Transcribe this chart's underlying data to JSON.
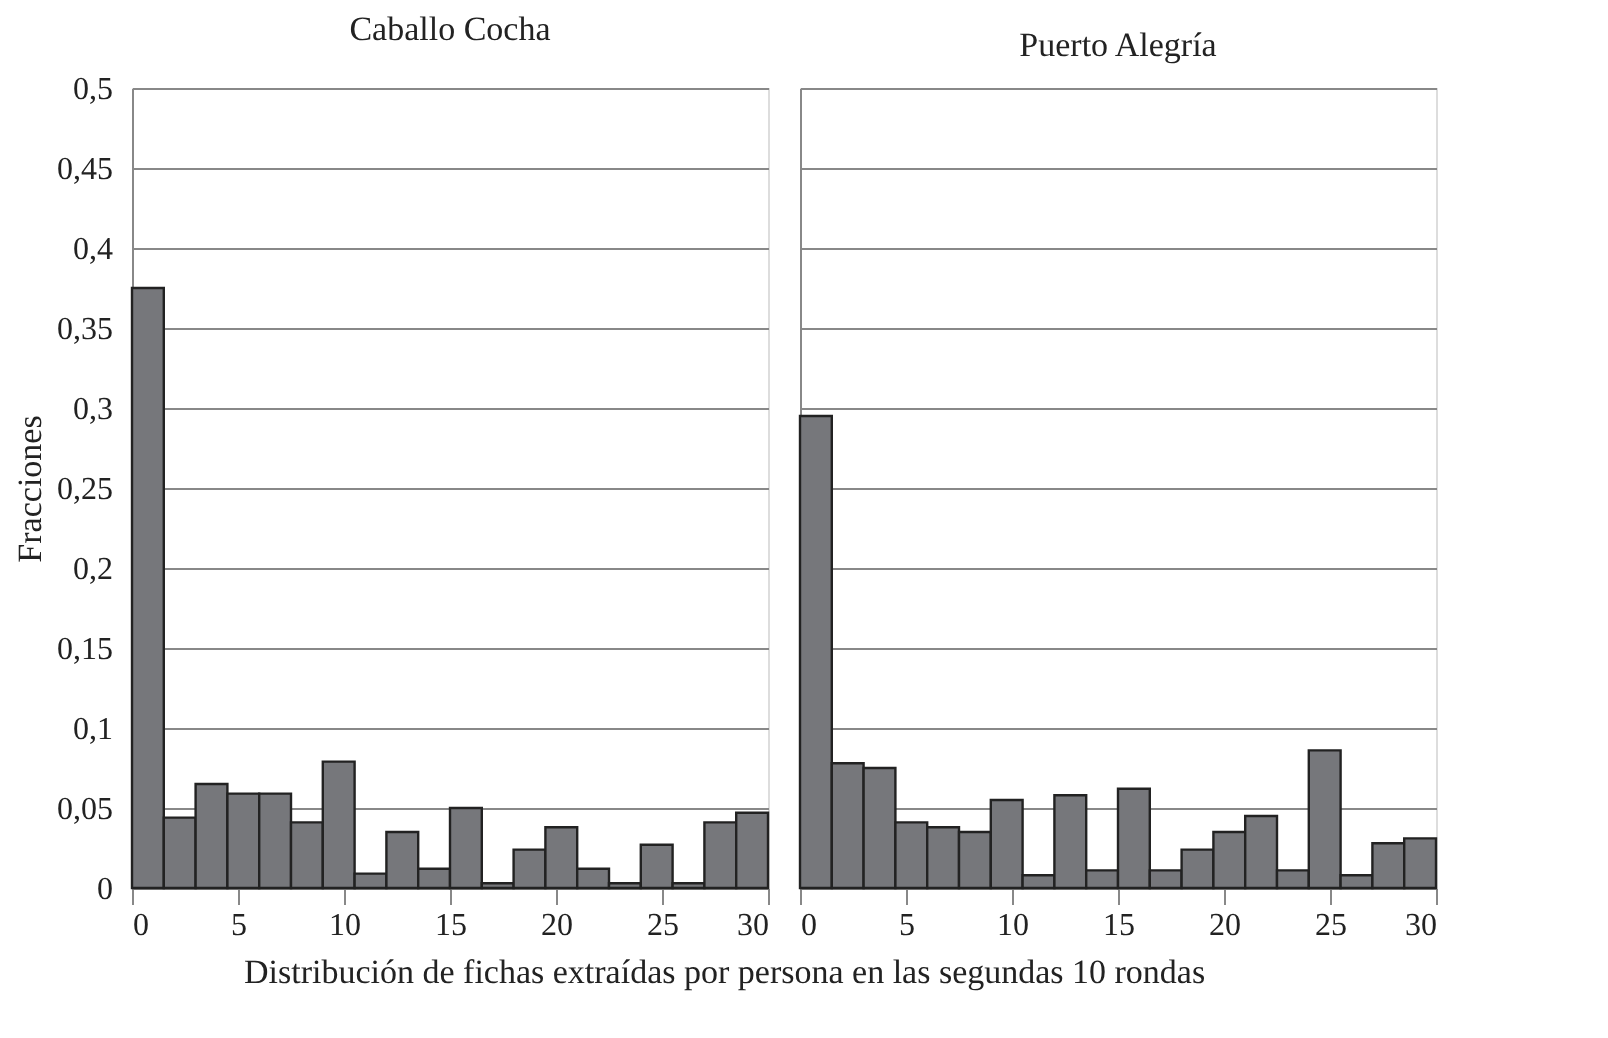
{
  "chart_data": [
    {
      "type": "histogram",
      "title": "Caballo Cocha",
      "ylabel": "Fracciones",
      "xlabel": "Distribución de fichas extraídas por persona en las segundas 10 rondas",
      "bins": [
        0,
        1.5,
        3,
        4.5,
        6,
        7.5,
        9,
        10.5,
        12,
        13.5,
        15,
        16.5,
        18,
        19.5,
        21,
        22.5,
        24,
        25.5,
        27,
        28.5,
        30
      ],
      "values": [
        0.375,
        0.044,
        0.065,
        0.059,
        0.059,
        0.041,
        0.079,
        0.009,
        0.035,
        0.012,
        0.05,
        0.003,
        0.024,
        0.038,
        0.012,
        0.003,
        0.027,
        0.003,
        0.041,
        0.047
      ],
      "color": "#76777b",
      "xlim": [
        0,
        30
      ],
      "xticks": [
        0,
        5,
        10,
        15,
        20,
        25,
        30
      ],
      "ylim": [
        0,
        0.5
      ],
      "yticks": [
        0,
        {
          "value": 0.05,
          "label": "0,05"
        },
        {
          "value": 0.1,
          "label": "0,1"
        },
        {
          "value": 0.15,
          "label": "0,15"
        },
        {
          "value": 0.2,
          "label": "0,2"
        },
        {
          "value": 0.25,
          "label": "0,25"
        },
        {
          "value": 0.3,
          "label": "0,3"
        },
        {
          "value": 0.35,
          "label": "0,35"
        },
        {
          "value": 0.4,
          "label": "0,4"
        },
        {
          "value": 0.45,
          "label": "0,45"
        },
        {
          "value": 0.5,
          "label": "0,5"
        }
      ],
      "grid": "y"
    },
    {
      "type": "histogram",
      "title": "Puerto Alegría",
      "bins": [
        0,
        1.5,
        3,
        4.5,
        6,
        7.5,
        9,
        10.5,
        12,
        13.5,
        15,
        16.5,
        18,
        19.5,
        21,
        22.5,
        24,
        25.5,
        27,
        28.5,
        30
      ],
      "values": [
        0.295,
        0.078,
        0.075,
        0.041,
        0.038,
        0.035,
        0.055,
        0.008,
        0.058,
        0.011,
        0.062,
        0.011,
        0.024,
        0.035,
        0.045,
        0.011,
        0.086,
        0.008,
        0.028,
        0.031
      ],
      "color": "#76777b",
      "xlim": [
        0,
        30
      ],
      "xticks": [
        0,
        5,
        10,
        15,
        20,
        25,
        30
      ],
      "ylim": [
        0,
        0.5
      ],
      "yticks": [
        {
          "value": 0,
          "label": null
        },
        {
          "value": 0.05,
          "label": null
        },
        {
          "value": 0.1,
          "label": null
        },
        {
          "value": 0.15,
          "label": null
        },
        {
          "value": 0.2,
          "label": null
        },
        {
          "value": 0.25,
          "label": null
        },
        {
          "value": 0.3,
          "label": null
        },
        {
          "value": 0.35,
          "label": null
        },
        {
          "value": 0.4,
          "label": null
        },
        {
          "value": 0.45,
          "label": null
        },
        {
          "value": 0.5,
          "label": null
        }
      ],
      "grid": "y",
      "tick_labels": "x"
    }
  ]
}
